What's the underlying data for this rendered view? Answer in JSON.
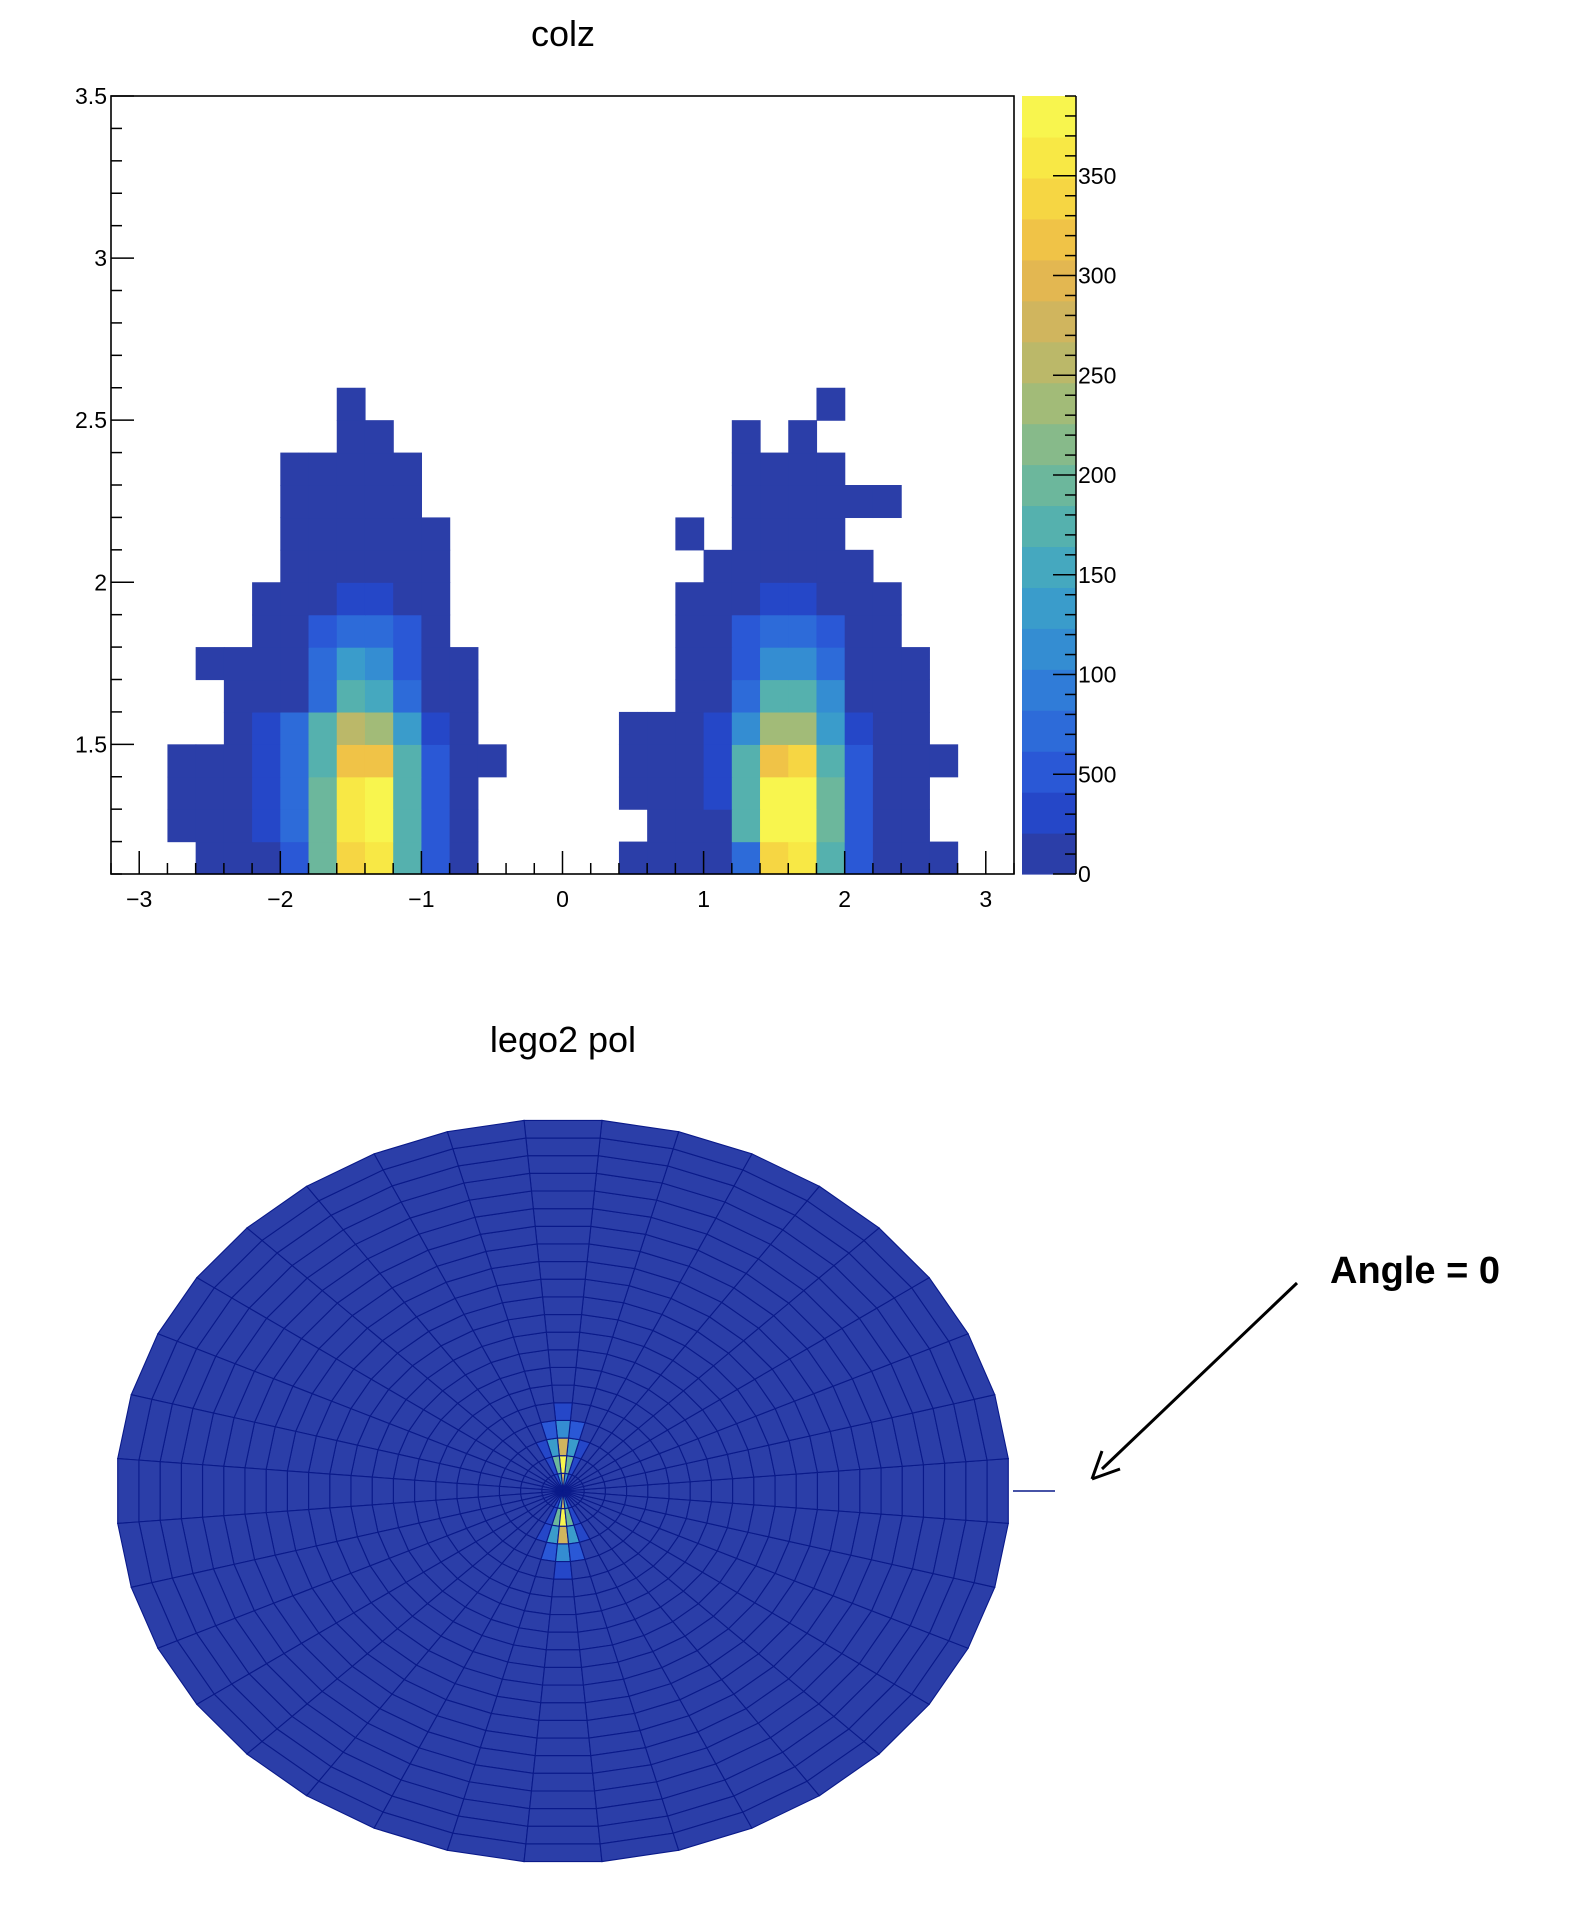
{
  "chart_data": [
    {
      "type": "heatmap",
      "title": "colz",
      "xlabel": "",
      "ylabel": "",
      "xlim": [
        -3.2,
        3.2
      ],
      "ylim": [
        1.1,
        3.5
      ],
      "x_ticks": [
        "−3",
        "−2",
        "−1",
        "0",
        "1",
        "2",
        "3"
      ],
      "y_ticks": [
        "1.5",
        "2",
        "2.5",
        "3",
        "3.5"
      ],
      "zlim": [
        0,
        3900
      ],
      "palette_ticks": [
        "0",
        "500",
        "100",
        "150",
        "200",
        "250",
        "300",
        "350"
      ],
      "cells": [
        [
          -2.6,
          1.1,
          5
        ],
        [
          -2.4,
          1.1,
          5
        ],
        [
          -2.2,
          1.1,
          5
        ],
        [
          -2.0,
          1.1,
          500
        ],
        [
          -1.8,
          1.1,
          2000
        ],
        [
          -1.6,
          1.1,
          3400
        ],
        [
          -1.4,
          1.1,
          3600
        ],
        [
          -1.2,
          1.1,
          1800
        ],
        [
          -1.0,
          1.1,
          500
        ],
        [
          -0.8,
          1.1,
          5
        ],
        [
          -2.8,
          1.2,
          5
        ],
        [
          -2.6,
          1.2,
          5
        ],
        [
          -2.4,
          1.2,
          5
        ],
        [
          -2.2,
          1.2,
          300
        ],
        [
          -2.0,
          1.2,
          700
        ],
        [
          -1.8,
          1.2,
          2000
        ],
        [
          -1.6,
          1.2,
          3600
        ],
        [
          -1.4,
          1.2,
          3800
        ],
        [
          -1.2,
          1.2,
          1800
        ],
        [
          -1.0,
          1.2,
          500
        ],
        [
          -0.8,
          1.2,
          5
        ],
        [
          -2.8,
          1.3,
          5
        ],
        [
          -2.6,
          1.3,
          5
        ],
        [
          -2.4,
          1.3,
          5
        ],
        [
          -2.2,
          1.3,
          300
        ],
        [
          -2.0,
          1.3,
          800
        ],
        [
          -1.8,
          1.3,
          1900
        ],
        [
          -1.6,
          1.3,
          3500
        ],
        [
          -1.4,
          1.3,
          3700
        ],
        [
          -1.2,
          1.3,
          1800
        ],
        [
          -1.0,
          1.3,
          500
        ],
        [
          -0.8,
          1.3,
          5
        ],
        [
          -2.8,
          1.4,
          5
        ],
        [
          -2.6,
          1.4,
          5
        ],
        [
          -2.4,
          1.4,
          5
        ],
        [
          -2.2,
          1.4,
          300
        ],
        [
          -2.0,
          1.4,
          800
        ],
        [
          -1.8,
          1.4,
          1800
        ],
        [
          -1.6,
          1.4,
          3200
        ],
        [
          -1.4,
          1.4,
          3200
        ],
        [
          -1.2,
          1.4,
          1700
        ],
        [
          -1.0,
          1.4,
          500
        ],
        [
          -0.8,
          1.4,
          5
        ],
        [
          -0.6,
          1.4,
          5
        ],
        [
          -2.4,
          1.5,
          5
        ],
        [
          -2.2,
          1.5,
          300
        ],
        [
          -2.0,
          1.5,
          700
        ],
        [
          -1.8,
          1.5,
          1700
        ],
        [
          -1.6,
          1.5,
          2500
        ],
        [
          -1.4,
          1.5,
          2300
        ],
        [
          -1.2,
          1.5,
          1300
        ],
        [
          -1.0,
          1.5,
          400
        ],
        [
          -0.8,
          1.5,
          5
        ],
        [
          -2.4,
          1.6,
          5
        ],
        [
          -2.2,
          1.6,
          5
        ],
        [
          -2.0,
          1.6,
          5
        ],
        [
          -1.8,
          1.6,
          700
        ],
        [
          -1.6,
          1.6,
          1800
        ],
        [
          -1.4,
          1.6,
          1500
        ],
        [
          -1.2,
          1.6,
          700
        ],
        [
          -1.0,
          1.6,
          5
        ],
        [
          -0.8,
          1.6,
          5
        ],
        [
          -2.6,
          1.7,
          5
        ],
        [
          -2.4,
          1.7,
          5
        ],
        [
          -2.2,
          1.7,
          5
        ],
        [
          -2.0,
          1.7,
          5
        ],
        [
          -1.8,
          1.7,
          700
        ],
        [
          -1.6,
          1.7,
          1300
        ],
        [
          -1.4,
          1.7,
          1200
        ],
        [
          -1.2,
          1.7,
          500
        ],
        [
          -1.0,
          1.7,
          5
        ],
        [
          -0.8,
          1.7,
          5
        ],
        [
          -2.2,
          1.8,
          5
        ],
        [
          -2.0,
          1.8,
          5
        ],
        [
          -1.8,
          1.8,
          500
        ],
        [
          -1.6,
          1.8,
          800
        ],
        [
          -1.4,
          1.8,
          800
        ],
        [
          -1.2,
          1.8,
          500
        ],
        [
          -1.0,
          1.8,
          5
        ],
        [
          -2.2,
          1.9,
          5
        ],
        [
          -2.0,
          1.9,
          5
        ],
        [
          -1.8,
          1.9,
          5
        ],
        [
          -1.6,
          1.9,
          400
        ],
        [
          -1.4,
          1.9,
          400
        ],
        [
          -1.2,
          1.9,
          5
        ],
        [
          -1.0,
          1.9,
          5
        ],
        [
          -2.0,
          2.0,
          5
        ],
        [
          -1.8,
          2.0,
          5
        ],
        [
          -1.6,
          2.0,
          5
        ],
        [
          -1.4,
          2.0,
          5
        ],
        [
          -1.2,
          2.0,
          5
        ],
        [
          -1.0,
          2.0,
          5
        ],
        [
          -2.0,
          2.1,
          5
        ],
        [
          -1.8,
          2.1,
          5
        ],
        [
          -1.6,
          2.1,
          5
        ],
        [
          -1.4,
          2.1,
          5
        ],
        [
          -1.2,
          2.1,
          5
        ],
        [
          -1.0,
          2.1,
          5
        ],
        [
          -2.0,
          2.2,
          5
        ],
        [
          -1.8,
          2.2,
          5
        ],
        [
          -1.6,
          2.2,
          5
        ],
        [
          -1.4,
          2.2,
          5
        ],
        [
          -1.2,
          2.2,
          5
        ],
        [
          -2.0,
          2.3,
          5
        ],
        [
          -1.8,
          2.3,
          5
        ],
        [
          -1.6,
          2.3,
          5
        ],
        [
          -1.4,
          2.3,
          5
        ],
        [
          -1.2,
          2.3,
          5
        ],
        [
          -1.6,
          2.4,
          5
        ],
        [
          -1.4,
          2.4,
          5
        ],
        [
          -1.6,
          2.5,
          5
        ],
        [
          0.4,
          1.1,
          5
        ],
        [
          0.6,
          1.1,
          5
        ],
        [
          0.8,
          1.1,
          5
        ],
        [
          1.0,
          1.1,
          5
        ],
        [
          1.2,
          1.1,
          800
        ],
        [
          1.4,
          1.1,
          3400
        ],
        [
          1.6,
          1.1,
          3600
        ],
        [
          1.8,
          1.1,
          1800
        ],
        [
          2.0,
          1.1,
          500
        ],
        [
          2.2,
          1.1,
          5
        ],
        [
          2.4,
          1.1,
          5
        ],
        [
          2.6,
          1.1,
          5
        ],
        [
          0.6,
          1.2,
          5
        ],
        [
          0.8,
          1.2,
          5
        ],
        [
          1.0,
          1.2,
          5
        ],
        [
          1.2,
          1.2,
          1800
        ],
        [
          1.4,
          1.2,
          3700
        ],
        [
          1.6,
          1.2,
          3800
        ],
        [
          1.8,
          1.2,
          1900
        ],
        [
          2.0,
          1.2,
          600
        ],
        [
          2.2,
          1.2,
          5
        ],
        [
          2.4,
          1.2,
          5
        ],
        [
          0.4,
          1.3,
          5
        ],
        [
          0.6,
          1.3,
          5
        ],
        [
          0.8,
          1.3,
          5
        ],
        [
          1.0,
          1.3,
          300
        ],
        [
          1.2,
          1.3,
          1800
        ],
        [
          1.4,
          1.3,
          3700
        ],
        [
          1.6,
          1.3,
          3700
        ],
        [
          1.8,
          1.3,
          1900
        ],
        [
          2.0,
          1.3,
          600
        ],
        [
          2.2,
          1.3,
          5
        ],
        [
          2.4,
          1.3,
          5
        ],
        [
          0.4,
          1.4,
          5
        ],
        [
          0.6,
          1.4,
          5
        ],
        [
          0.8,
          1.4,
          5
        ],
        [
          1.0,
          1.4,
          300
        ],
        [
          1.2,
          1.4,
          1700
        ],
        [
          1.4,
          1.4,
          3200
        ],
        [
          1.6,
          1.4,
          3300
        ],
        [
          1.8,
          1.4,
          1800
        ],
        [
          2.0,
          1.4,
          500
        ],
        [
          2.2,
          1.4,
          5
        ],
        [
          2.4,
          1.4,
          5
        ],
        [
          2.6,
          1.4,
          5
        ],
        [
          0.4,
          1.5,
          5
        ],
        [
          0.6,
          1.5,
          5
        ],
        [
          0.8,
          1.5,
          5
        ],
        [
          1.0,
          1.5,
          300
        ],
        [
          1.2,
          1.5,
          1200
        ],
        [
          1.4,
          1.5,
          2400
        ],
        [
          1.6,
          1.5,
          2400
        ],
        [
          1.8,
          1.5,
          1300
        ],
        [
          2.0,
          1.5,
          400
        ],
        [
          2.2,
          1.5,
          5
        ],
        [
          2.4,
          1.5,
          5
        ],
        [
          0.8,
          1.6,
          5
        ],
        [
          1.0,
          1.6,
          5
        ],
        [
          1.2,
          1.6,
          700
        ],
        [
          1.4,
          1.6,
          1800
        ],
        [
          1.6,
          1.6,
          1700
        ],
        [
          1.8,
          1.6,
          1100
        ],
        [
          2.0,
          1.6,
          5
        ],
        [
          2.2,
          1.6,
          5
        ],
        [
          2.4,
          1.6,
          5
        ],
        [
          0.8,
          1.7,
          5
        ],
        [
          1.0,
          1.7,
          5
        ],
        [
          1.2,
          1.7,
          600
        ],
        [
          1.4,
          1.7,
          1200
        ],
        [
          1.6,
          1.7,
          1200
        ],
        [
          1.8,
          1.7,
          800
        ],
        [
          2.0,
          1.7,
          5
        ],
        [
          2.2,
          1.7,
          5
        ],
        [
          2.4,
          1.7,
          5
        ],
        [
          0.8,
          1.8,
          5
        ],
        [
          1.0,
          1.8,
          5
        ],
        [
          1.2,
          1.8,
          500
        ],
        [
          1.4,
          1.8,
          800
        ],
        [
          1.6,
          1.8,
          800
        ],
        [
          1.8,
          1.8,
          500
        ],
        [
          2.0,
          1.8,
          5
        ],
        [
          2.2,
          1.8,
          5
        ],
        [
          0.8,
          1.9,
          5
        ],
        [
          1.0,
          1.9,
          5
        ],
        [
          1.2,
          1.9,
          5
        ],
        [
          1.4,
          1.9,
          400
        ],
        [
          1.6,
          1.9,
          400
        ],
        [
          1.8,
          1.9,
          5
        ],
        [
          2.0,
          1.9,
          5
        ],
        [
          2.2,
          1.9,
          5
        ],
        [
          1.0,
          2.0,
          5
        ],
        [
          1.2,
          2.0,
          5
        ],
        [
          1.4,
          2.0,
          5
        ],
        [
          1.6,
          2.0,
          5
        ],
        [
          1.8,
          2.0,
          5
        ],
        [
          2.0,
          2.0,
          5
        ],
        [
          0.8,
          2.1,
          5
        ],
        [
          1.2,
          2.1,
          5
        ],
        [
          1.4,
          2.1,
          5
        ],
        [
          1.6,
          2.1,
          5
        ],
        [
          1.8,
          2.1,
          5
        ],
        [
          1.2,
          2.2,
          5
        ],
        [
          1.4,
          2.2,
          5
        ],
        [
          1.6,
          2.2,
          5
        ],
        [
          1.8,
          2.2,
          5
        ],
        [
          2.0,
          2.2,
          5
        ],
        [
          2.2,
          2.2,
          5
        ],
        [
          1.2,
          2.3,
          5
        ],
        [
          1.4,
          2.3,
          5
        ],
        [
          1.6,
          2.3,
          5
        ],
        [
          1.8,
          2.3,
          5
        ],
        [
          1.2,
          2.4,
          5
        ],
        [
          1.6,
          2.4,
          5
        ],
        [
          1.8,
          2.5,
          5
        ]
      ]
    },
    {
      "type": "heatmap",
      "title": "lego2 pol",
      "annotation": "Angle = 0"
    }
  ],
  "colors": {
    "background": "#ffffff",
    "axis": "#000000",
    "lego_edge": "#0a1a8a"
  }
}
